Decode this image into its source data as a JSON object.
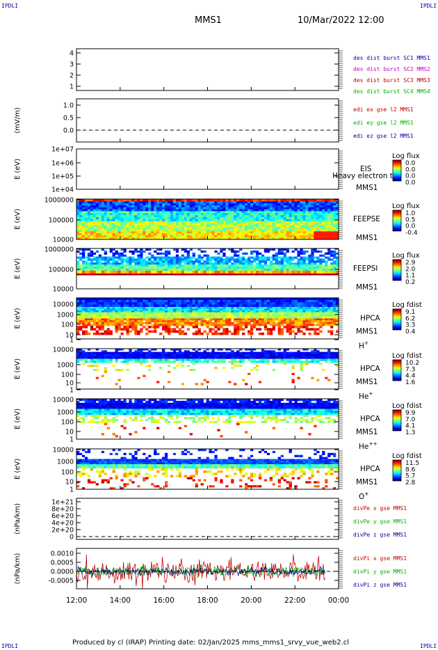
{
  "header": {
    "corner_left_top": "IPDLI",
    "corner_right_top": "IPDLI",
    "corner_left_bottom": "IPDLI",
    "corner_right_bottom": "IPDLI",
    "mission": "MMS1",
    "datetime": "10/Mar/2022 12:00"
  },
  "footer": {
    "text": "Produced by cl (IRAP)   Printing date: 02/Jan/2025   mms_mms1_srvy_vue_web2.cl"
  },
  "colors": {
    "mms1": "#0000a0",
    "mms2": "#c000c0",
    "mms3": "#c00000",
    "mms4": "#00b000",
    "ex": "#c00000",
    "ey": "#00b000",
    "ez": "#0000a0"
  },
  "chart_data": {
    "type": "stacked-timeseries-spectrogram",
    "x_ticks": [
      "12:00",
      "14:00",
      "16:00",
      "18:00",
      "20:00",
      "22:00",
      "00:00"
    ],
    "panels": [
      {
        "id": "burst",
        "kind": "line",
        "ylabel": "",
        "yticks": [
          "1",
          "2",
          "3",
          "4"
        ],
        "legend": [
          {
            "text": "des dist burst SC1 MMS1",
            "color": "#0000a0"
          },
          {
            "text": "des dist burst SC2 MMS2",
            "color": "#c000c0"
          },
          {
            "text": "des dist burst SC3 MMS3",
            "color": "#c00000"
          },
          {
            "text": "des dist burst SC4 MMS4",
            "color": "#00b000"
          }
        ]
      },
      {
        "id": "edi",
        "kind": "line",
        "ylabel": "(mV/m)",
        "yticks": [
          "1.0",
          "0.5",
          "0.0"
        ],
        "legend": [
          {
            "text": "edi ex gse l2 MMS1",
            "color": "#c00000"
          },
          {
            "text": "edi ey gse l2 MMS1",
            "color": "#00b000"
          },
          {
            "text": "edi ez gse l2 MMS1",
            "color": "#0000a0"
          }
        ]
      },
      {
        "id": "eis",
        "kind": "spectrogram",
        "ylabel": "E (eV)",
        "yticks": [
          "1e+07",
          "1e+06",
          "1e+05",
          "1e+04"
        ],
        "label_lines": [
          "EIS",
          "MMS1"
        ],
        "overlay_text": "Heavy electron to",
        "colorbar_title": "Log flux",
        "colorbar_ticks": [
          "0.0",
          "0.0",
          "0.0",
          "0.0"
        ]
      },
      {
        "id": "feepse",
        "kind": "spectrogram",
        "ylabel": "E (eV)",
        "yticks": [
          "1000000",
          "100000",
          "10000"
        ],
        "label_lines": [
          "FEEPSE",
          "MMS1"
        ],
        "colorbar_title": "Log flux",
        "colorbar_ticks": [
          "1.0",
          "0.5",
          "0.0",
          "-0.4"
        ]
      },
      {
        "id": "feepsi",
        "kind": "spectrogram",
        "ylabel": "E (eV)",
        "yticks": [
          "1000000",
          "100000",
          "10000"
        ],
        "label_lines": [
          "FEEPSI",
          "MMS1"
        ],
        "colorbar_title": "Log flux",
        "colorbar_ticks": [
          "2.9",
          "2.0",
          "1.1",
          "0.2"
        ]
      },
      {
        "id": "hpca_h",
        "kind": "spectrogram",
        "ylabel": "E (eV)",
        "yticks": [
          "10000",
          "1000",
          "100",
          "10",
          "1"
        ],
        "label_lines": [
          "HPCA",
          "MMS1"
        ],
        "species": "H",
        "species_sup": "+",
        "colorbar_title": "Log fdist",
        "colorbar_ticks": [
          "9.1",
          "6.2",
          "3.3",
          "0.4"
        ]
      },
      {
        "id": "hpca_he",
        "kind": "spectrogram",
        "ylabel": "E (eV)",
        "yticks": [
          "10000",
          "1000",
          "100",
          "10",
          "1"
        ],
        "label_lines": [
          "HPCA",
          "MMS1"
        ],
        "species": "He",
        "species_sup": "+",
        "colorbar_title": "Log fdist",
        "colorbar_ticks": [
          "10.2",
          "7.3",
          "4.4",
          "1.6"
        ]
      },
      {
        "id": "hpca_he2",
        "kind": "spectrogram",
        "ylabel": "E (eV)",
        "yticks": [
          "10000",
          "1000",
          "100",
          "10",
          "1"
        ],
        "label_lines": [
          "HPCA",
          "MMS1"
        ],
        "species": "He",
        "species_sup": "++",
        "colorbar_title": "Log fdist",
        "colorbar_ticks": [
          "9.9",
          "7.0",
          "4.1",
          "1.3"
        ]
      },
      {
        "id": "hpca_o",
        "kind": "spectrogram",
        "ylabel": "E (eV)",
        "yticks": [
          "10000",
          "1000",
          "100",
          "10",
          "1"
        ],
        "label_lines": [
          "HPCA",
          "MMS1"
        ],
        "species": "O",
        "species_sup": "+",
        "colorbar_title": "Log fdist",
        "colorbar_ticks": [
          "11.5",
          "8.6",
          "5.7",
          "2.8"
        ]
      },
      {
        "id": "divpe",
        "kind": "line",
        "ylabel": "(nPa/km)",
        "yticks": [
          "1e+21",
          "8e+20",
          "6e+20",
          "4e+20",
          "2e+20",
          "0"
        ],
        "legend": [
          {
            "text": "divPe x gse MMS1",
            "color": "#c00000"
          },
          {
            "text": "divPe y gse MMS1",
            "color": "#00b000"
          },
          {
            "text": "divPe z gse MMS1",
            "color": "#0000a0"
          }
        ]
      },
      {
        "id": "divpi",
        "kind": "line",
        "ylabel": "(nPa/km)",
        "yticks": [
          "0.0010",
          "0.0005",
          "0.0000",
          "-0.0005"
        ],
        "legend": [
          {
            "text": "divPi x gse MMS1",
            "color": "#c00000"
          },
          {
            "text": "divPi y gse MMS1",
            "color": "#00b000"
          },
          {
            "text": "divPi z gse MMS1",
            "color": "#0000a0"
          }
        ]
      }
    ]
  }
}
